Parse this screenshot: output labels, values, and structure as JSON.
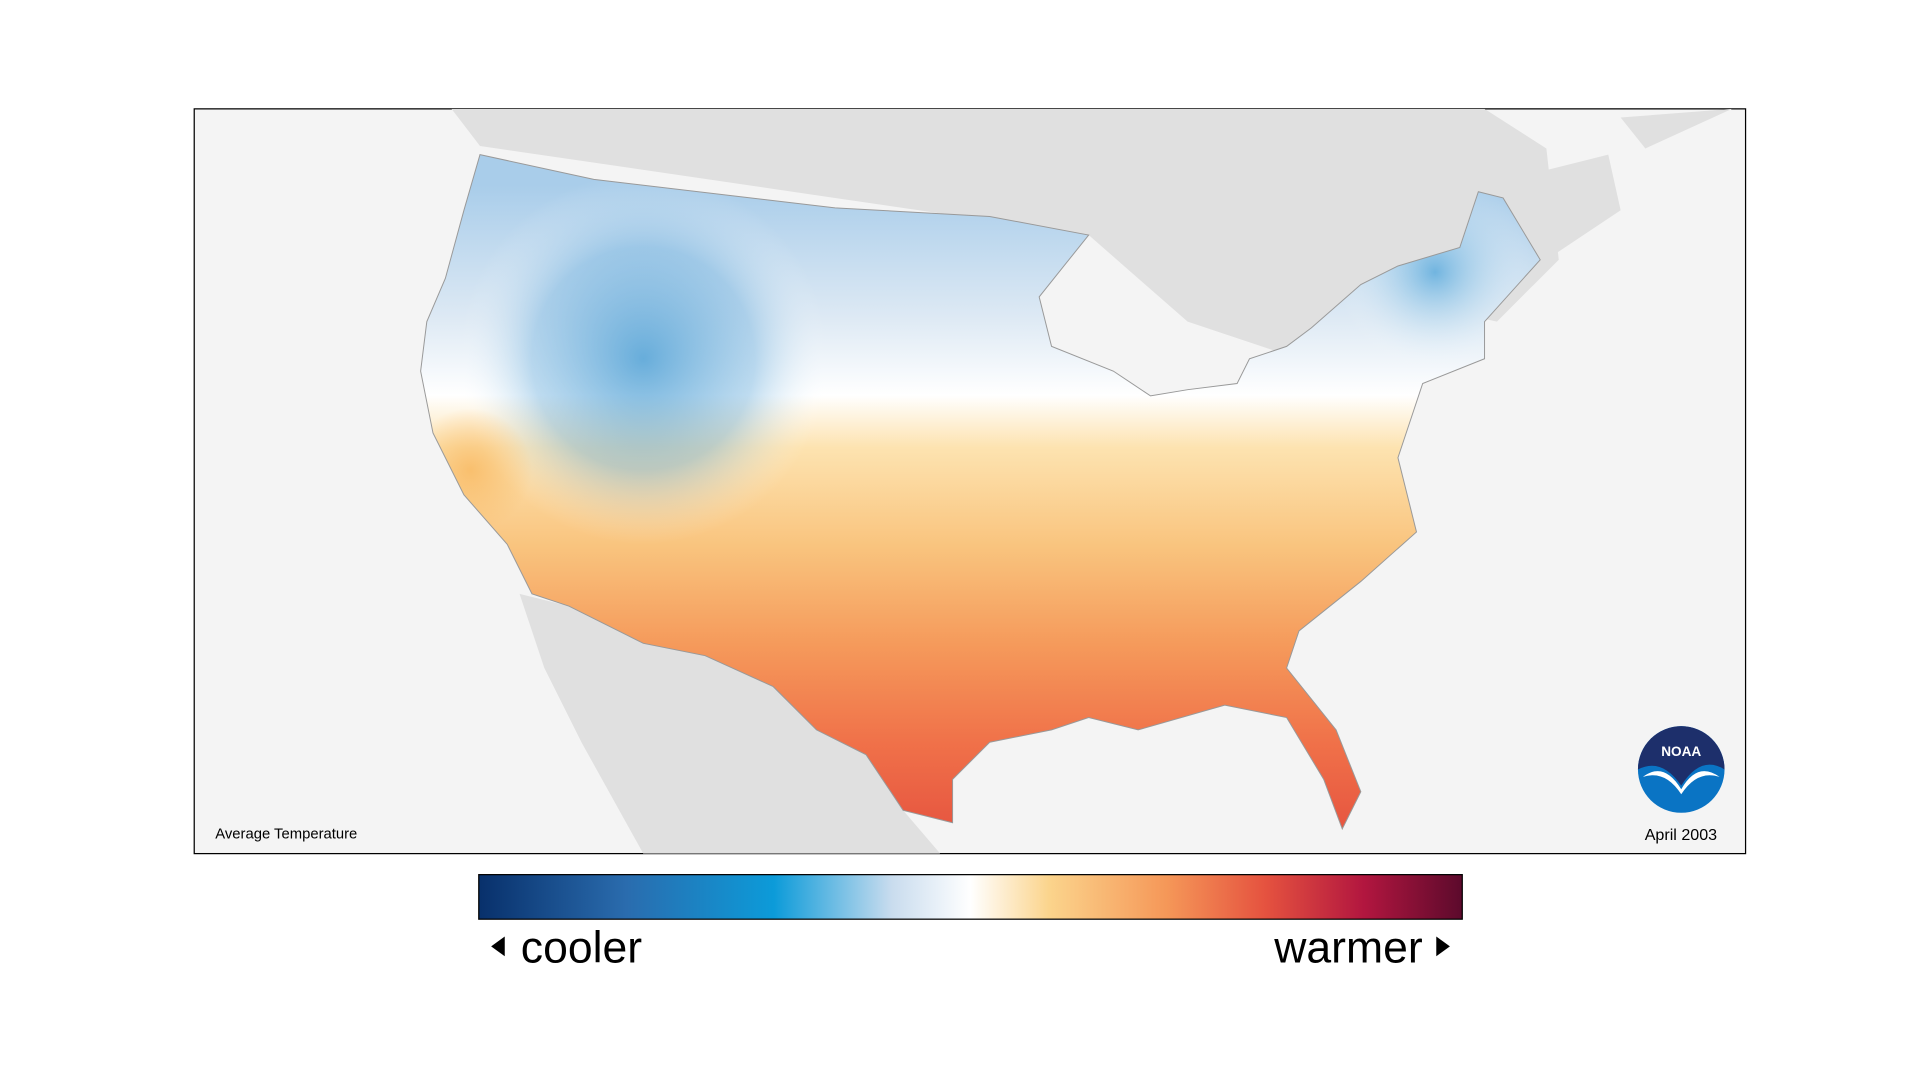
{
  "map": {
    "title": "Average Temperature",
    "date": "April 2003",
    "logo": "NOAA"
  },
  "legend": {
    "low_label": "cooler",
    "high_label": "warmer"
  }
}
